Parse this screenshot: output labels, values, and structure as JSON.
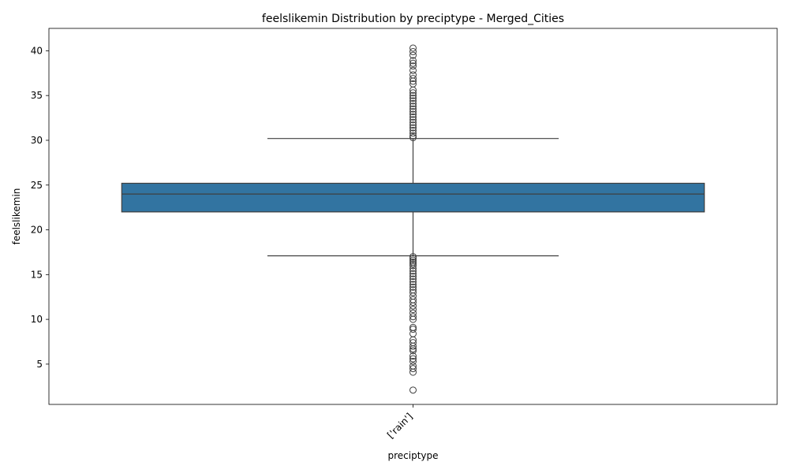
{
  "chart_data": {
    "type": "box",
    "title": "feelslikemin Distribution by preciptype - Merged_Cities",
    "xlabel": "preciptype",
    "ylabel": "feelslikemin",
    "categories": [
      "['rain']"
    ],
    "ylim": [
      0.5,
      42.5
    ],
    "yticks": [
      5,
      10,
      15,
      20,
      25,
      30,
      35,
      40
    ],
    "grid": false,
    "colors": {
      "box": "#3274a1",
      "line": "#3f3f3f",
      "axis": "#000000"
    },
    "boxes": [
      {
        "category": "['rain']",
        "q1": 22.0,
        "median": 24.0,
        "q3": 25.2,
        "whisker_low": 17.1,
        "whisker_high": 30.2,
        "outliers": [
          40.3,
          39.9,
          39.5,
          38.9,
          38.6,
          38.3,
          37.8,
          37.3,
          36.9,
          36.6,
          36.3,
          35.6,
          35.3,
          35.0,
          34.7,
          34.4,
          34.1,
          33.8,
          33.5,
          33.2,
          32.9,
          32.6,
          32.3,
          32.0,
          31.7,
          31.4,
          31.1,
          30.8,
          30.5,
          30.3,
          17.0,
          16.8,
          16.6,
          16.4,
          16.2,
          16.0,
          15.7,
          15.4,
          15.1,
          14.8,
          14.5,
          14.2,
          13.9,
          13.6,
          13.3,
          13.0,
          12.6,
          12.2,
          11.9,
          11.5,
          11.1,
          10.7,
          10.3,
          10.0,
          9.1,
          8.9,
          8.4,
          7.7,
          7.4,
          7.0,
          6.7,
          6.5,
          5.9,
          5.6,
          5.3,
          4.8,
          4.5,
          4.1,
          2.1
        ]
      }
    ]
  }
}
